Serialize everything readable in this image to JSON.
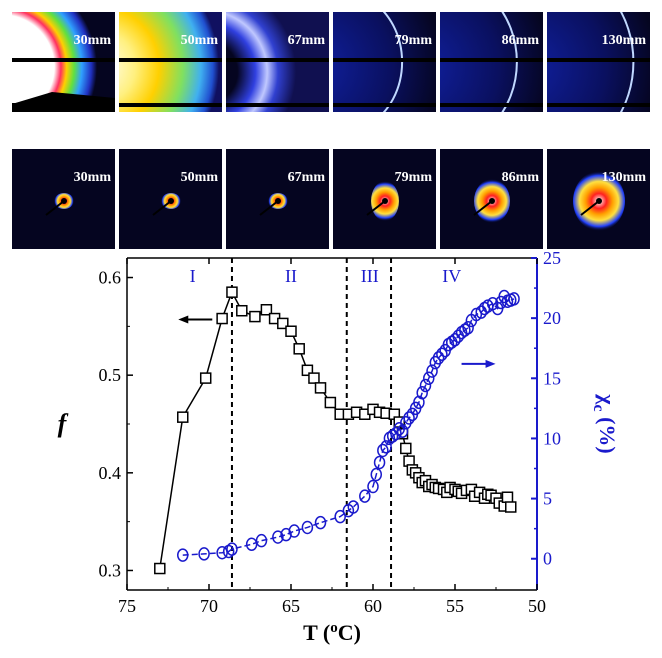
{
  "panels": {
    "top": [
      {
        "label": "30mm",
        "style": "very-bright"
      },
      {
        "label": "50mm",
        "style": "bright"
      },
      {
        "label": "67mm",
        "style": "medium"
      },
      {
        "label": "79mm",
        "style": "ring"
      },
      {
        "label": "86mm",
        "style": "ring"
      },
      {
        "label": "130mm",
        "style": "ring"
      }
    ],
    "bottom": [
      {
        "label": "30mm",
        "style": "tiny"
      },
      {
        "label": "50mm",
        "style": "tiny"
      },
      {
        "label": "67mm",
        "style": "tiny"
      },
      {
        "label": "79mm",
        "style": "small"
      },
      {
        "label": "86mm",
        "style": "medium"
      },
      {
        "label": "130mm",
        "style": "large"
      }
    ]
  },
  "colors": {
    "left_series": "#000000",
    "right_series": "#1a1acc",
    "panel_bg": "#050520"
  },
  "chart_data": {
    "type": "scatter",
    "xlabel": "T (oC)",
    "ylabel_left": "f",
    "ylabel_right": "χc (%)",
    "xlim": [
      75,
      50
    ],
    "ylim_left": [
      0.28,
      0.62
    ],
    "ylim_right": [
      -2.6,
      25
    ],
    "x_ticks": [
      "75",
      "70",
      "65",
      "60",
      "55",
      "50"
    ],
    "y_left_ticks": [
      "0.3",
      "0.4",
      "0.5",
      "0.6"
    ],
    "y_right_ticks": [
      "0",
      "5",
      "10",
      "15",
      "20",
      "25"
    ],
    "regions": [
      "I",
      "II",
      "III",
      "IV"
    ],
    "dividers": [
      68.6,
      61.6,
      58.9
    ],
    "series": [
      {
        "axis": "left",
        "marker": "square",
        "connected": true,
        "x": [
          73.0,
          71.6,
          70.2,
          69.2,
          68.6,
          68.0,
          67.2,
          66.5,
          66.0,
          65.5,
          65.0,
          64.5,
          64.0,
          63.6,
          63.2,
          62.6,
          62.0,
          61.5,
          61.0,
          60.5,
          60.0,
          59.6,
          59.2,
          58.7,
          58.4,
          58.2,
          58.0,
          57.8,
          57.6,
          57.4,
          57.2,
          57.0,
          56.8,
          56.6,
          56.4,
          56.2,
          56.0,
          55.7,
          55.5,
          55.3,
          55.0,
          54.8,
          54.6,
          54.3,
          54.0,
          53.8,
          53.5,
          53.2,
          53.0,
          52.8,
          52.5,
          52.3,
          52.0,
          51.8,
          51.6
        ],
        "y": [
          0.302,
          0.457,
          0.497,
          0.558,
          0.585,
          0.566,
          0.56,
          0.567,
          0.558,
          0.553,
          0.545,
          0.527,
          0.505,
          0.497,
          0.487,
          0.472,
          0.46,
          0.46,
          0.462,
          0.46,
          0.465,
          0.462,
          0.461,
          0.46,
          0.452,
          0.44,
          0.425,
          0.412,
          0.403,
          0.4,
          0.395,
          0.39,
          0.392,
          0.386,
          0.388,
          0.385,
          0.384,
          0.383,
          0.38,
          0.385,
          0.383,
          0.381,
          0.379,
          0.382,
          0.383,
          0.376,
          0.38,
          0.374,
          0.378,
          0.377,
          0.374,
          0.369,
          0.366,
          0.375,
          0.365
        ]
      },
      {
        "axis": "right",
        "marker": "circle",
        "connected": true,
        "x": [
          71.6,
          70.3,
          69.2,
          68.8,
          68.6,
          67.4,
          66.8,
          65.8,
          65.3,
          64.8,
          64.0,
          63.2,
          62.0,
          61.5,
          61.2,
          60.5,
          60.0,
          59.8,
          59.6,
          59.4,
          59.2,
          59.0,
          58.8,
          58.6,
          58.4,
          58.2,
          58.0,
          57.8,
          57.6,
          57.4,
          57.2,
          57.0,
          56.8,
          56.6,
          56.4,
          56.2,
          56.0,
          55.8,
          55.6,
          55.4,
          55.2,
          55.0,
          54.8,
          54.6,
          54.4,
          54.2,
          54.0,
          53.7,
          53.4,
          53.2,
          53.0,
          52.7,
          52.4,
          52.2,
          52.0,
          51.8,
          51.6,
          51.4
        ],
        "y": [
          0.3,
          0.4,
          0.5,
          0.6,
          0.8,
          1.2,
          1.5,
          1.8,
          2.0,
          2.3,
          2.6,
          3.0,
          3.5,
          4.0,
          4.3,
          5.2,
          6.0,
          7.0,
          8.0,
          9.0,
          9.3,
          10.0,
          10.2,
          10.4,
          10.8,
          10.6,
          11.3,
          11.7,
          12.0,
          12.5,
          13.0,
          13.8,
          14.4,
          15.0,
          15.6,
          16.3,
          16.7,
          17.0,
          17.3,
          17.8,
          18.0,
          18.2,
          18.5,
          18.8,
          19.0,
          19.2,
          19.8,
          20.3,
          20.5,
          20.8,
          21.0,
          21.2,
          20.8,
          21.3,
          21.8,
          21.4,
          21.5,
          21.6
        ]
      }
    ]
  }
}
